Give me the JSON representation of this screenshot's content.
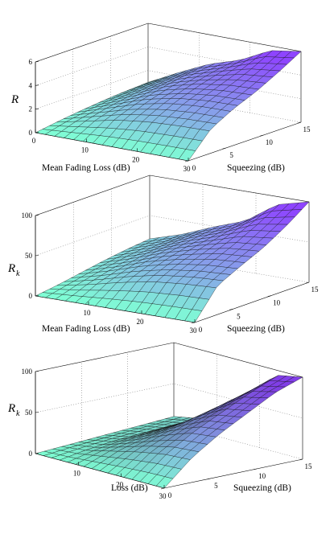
{
  "chart_data": [
    {
      "type": "surface",
      "zlabel": "R",
      "zlabel_sub": "",
      "xlabel": "Mean Fading Loss (dB)",
      "ylabel": "Squeezing (dB)",
      "x_ticks": [
        "0",
        "10",
        "20",
        "30"
      ],
      "y_ticks": [
        "0",
        "5",
        "10",
        "15"
      ],
      "z_ticks": [
        "0",
        "2",
        "4",
        "6"
      ],
      "xlim": [
        0,
        30
      ],
      "ylim": [
        0,
        15
      ],
      "zlim": [
        0,
        6
      ],
      "colormap": [
        "#7fffd4",
        "#8e44ff"
      ],
      "z_grid": [
        [
          0.0,
          0.3,
          0.55,
          0.75,
          0.9,
          1.0
        ],
        [
          0.0,
          0.9,
          1.4,
          1.75,
          2.05,
          2.3
        ],
        [
          0.0,
          1.5,
          2.25,
          2.8,
          3.2,
          3.5
        ],
        [
          0.0,
          1.85,
          2.8,
          3.45,
          3.95,
          4.3
        ],
        [
          0.0,
          2.0,
          3.05,
          3.8,
          4.6,
          5.6
        ],
        [
          0.0,
          2.05,
          3.1,
          3.9,
          4.9,
          6.0
        ]
      ]
    },
    {
      "type": "surface",
      "zlabel": "R",
      "zlabel_sub": "k",
      "xlabel": "Mean Fading Loss (dB)",
      "ylabel": "Squeezing (dB)",
      "x_ticks": [
        "10",
        "20",
        "30"
      ],
      "y_ticks": [
        "0",
        "5",
        "10",
        "15"
      ],
      "z_ticks": [
        "0",
        "50",
        "100"
      ],
      "xlim": [
        0,
        30
      ],
      "ylim": [
        0,
        15
      ],
      "zlim": [
        0,
        100
      ],
      "colormap": [
        "#7fffd4",
        "#8e44ff"
      ],
      "z_grid": [
        [
          0,
          4,
          9,
          14,
          18,
          21
        ],
        [
          0,
          12,
          20,
          26,
          30,
          33
        ],
        [
          0,
          22,
          33,
          40,
          45,
          49
        ],
        [
          0,
          30,
          42,
          51,
          58,
          63
        ],
        [
          0,
          34,
          48,
          60,
          74,
          90
        ],
        [
          0,
          36,
          50,
          63,
          80,
          100
        ]
      ]
    },
    {
      "type": "surface",
      "zlabel": "R",
      "zlabel_sub": "k",
      "xlabel": "Loss (dB)",
      "ylabel": "Squeezing (dB)",
      "x_ticks": [
        "10",
        "20",
        "30"
      ],
      "y_ticks": [
        "0",
        "5",
        "10",
        "15"
      ],
      "z_ticks": [
        "0",
        "50",
        "100"
      ],
      "xlim": [
        0,
        30
      ],
      "ylim": [
        0,
        15
      ],
      "zlim": [
        0,
        100
      ],
      "colormap": [
        "#7fffd4",
        "#8e44ff"
      ],
      "z_grid": [
        [
          0,
          2,
          4,
          6,
          8,
          10
        ],
        [
          0,
          6,
          10,
          12,
          14,
          16
        ],
        [
          0,
          14,
          22,
          28,
          32,
          36
        ],
        [
          0,
          22,
          36,
          48,
          58,
          66
        ],
        [
          0,
          28,
          48,
          64,
          80,
          94
        ],
        [
          0,
          30,
          52,
          70,
          88,
          100
        ]
      ]
    }
  ]
}
